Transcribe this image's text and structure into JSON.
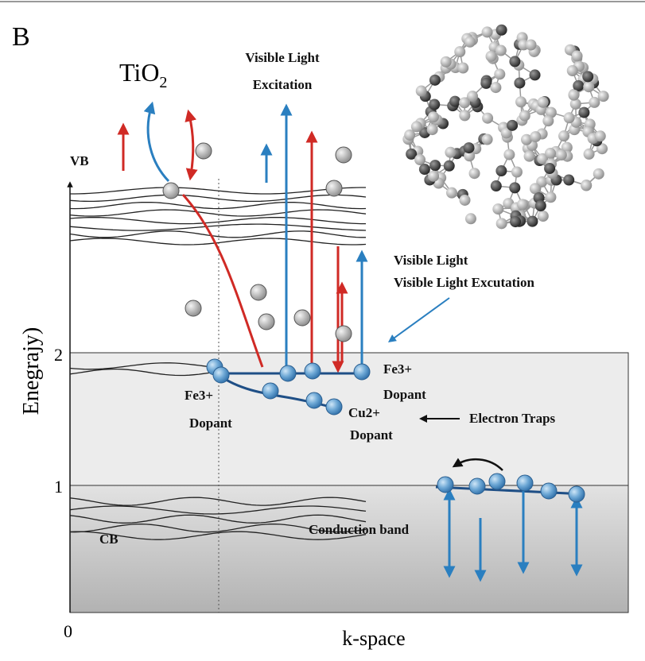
{
  "panel_label": "B",
  "title": {
    "main": "TiO",
    "sub": "2"
  },
  "labels": {
    "vb": "VB",
    "cb": "CB",
    "excitation": [
      "Visible Light",
      "Excitation"
    ],
    "visible_light": [
      "Visible Light",
      "Visible Light Excutation"
    ],
    "fe3_left": [
      "Fe3+",
      "Dopant"
    ],
    "fe3_right": [
      "Fe3+",
      "Dopant"
    ],
    "cu2": [
      "Cu2+",
      "Dopant"
    ],
    "electron_traps": "Electron Traps",
    "conduction_band": "Conduction band"
  },
  "axes": {
    "y_label": "Enegrajy)",
    "x_label": "k-space",
    "y_ticks": [
      "2",
      "1"
    ],
    "origin": "0"
  }
}
